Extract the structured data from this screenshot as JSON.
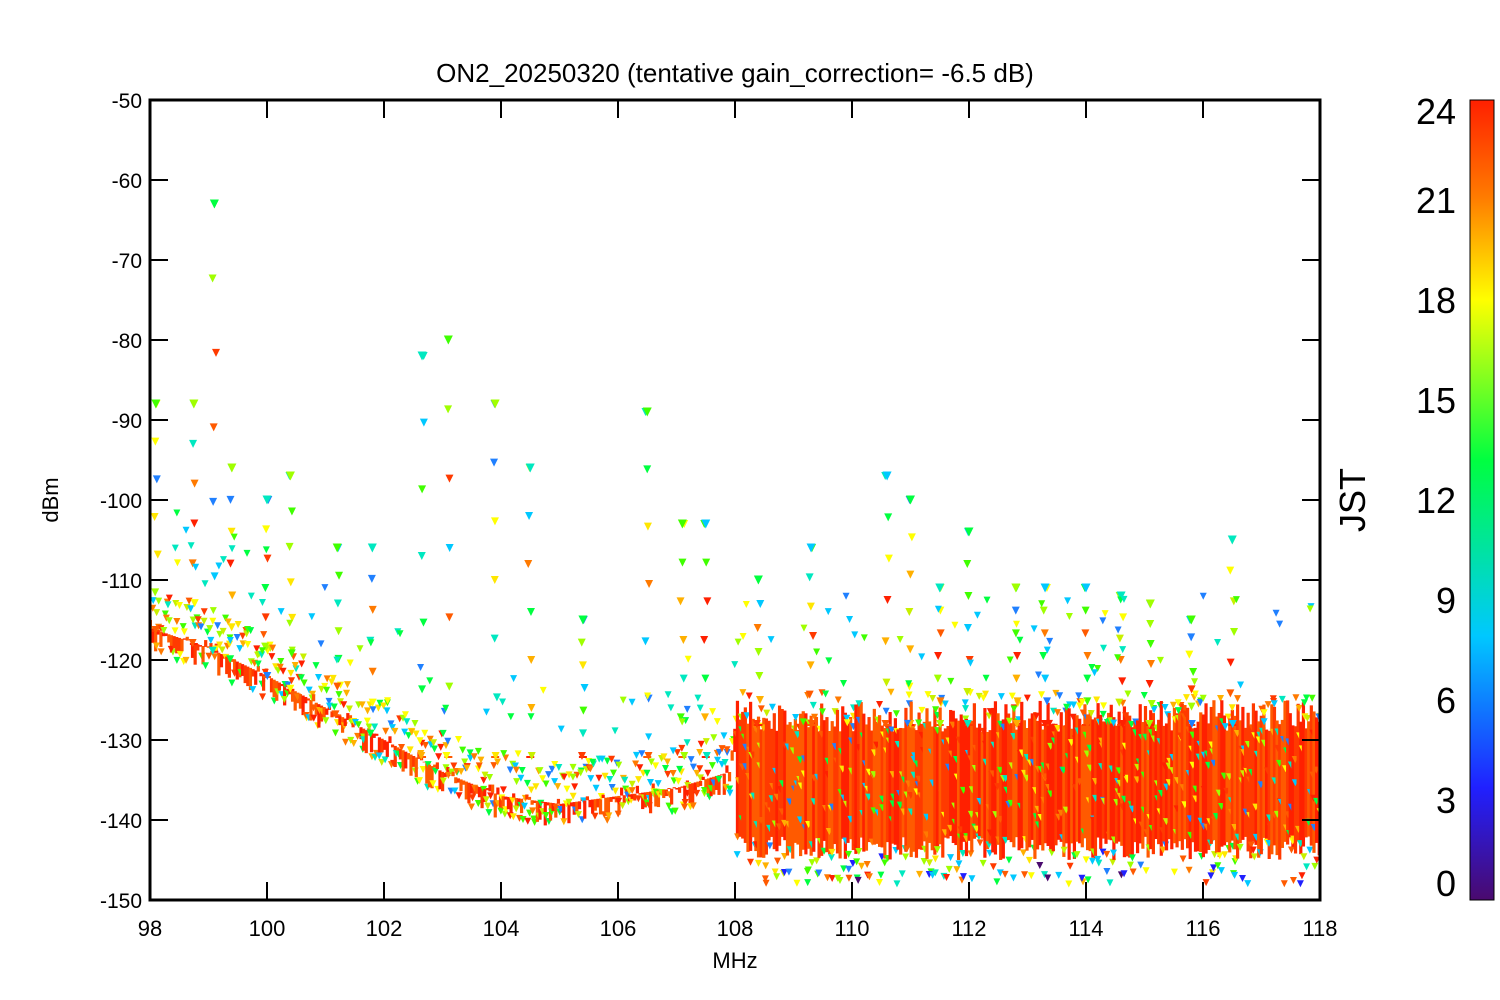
{
  "chart_data": {
    "type": "scatter",
    "title": "ON2_20250320 (tentative gain_correction= -6.5 dB)",
    "xlabel": "MHz",
    "ylabel": "dBm",
    "xlim": [
      98,
      118
    ],
    "ylim": [
      -150,
      -50
    ],
    "xticks": [
      "98",
      "100",
      "102",
      "104",
      "106",
      "108",
      "110",
      "112",
      "114",
      "116",
      "118"
    ],
    "yticks": [
      "-50",
      "-60",
      "-70",
      "-80",
      "-90",
      "-100",
      "-110",
      "-120",
      "-130",
      "-140",
      "-150"
    ],
    "colorbar": {
      "label": "JST",
      "range": [
        0,
        24
      ],
      "ticks": [
        "0",
        "3",
        "6",
        "9",
        "12",
        "15",
        "18",
        "21",
        "24"
      ],
      "colormap": "rainbow",
      "colors": [
        "#4a0a6e",
        "#2020ff",
        "#00c8ff",
        "#00ff40",
        "#ffff00",
        "#ff7a00",
        "#ff2000"
      ]
    },
    "noise_floor": [
      {
        "x": 98.0,
        "y": -116
      },
      {
        "x": 99.0,
        "y": -118.5
      },
      {
        "x": 100.0,
        "y": -122
      },
      {
        "x": 101.0,
        "y": -126
      },
      {
        "x": 102.0,
        "y": -130
      },
      {
        "x": 103.0,
        "y": -134
      },
      {
        "x": 104.0,
        "y": -137
      },
      {
        "x": 105.0,
        "y": -138
      },
      {
        "x": 106.0,
        "y": -137
      },
      {
        "x": 107.0,
        "y": -136
      },
      {
        "x": 107.9,
        "y": -134
      },
      {
        "x": 108.0,
        "y": -128
      },
      {
        "x": 118.0,
        "y": -128
      }
    ],
    "peaks": [
      {
        "x": 98.1,
        "y": -88
      },
      {
        "x": 98.75,
        "y": -88
      },
      {
        "x": 99.1,
        "y": -63
      },
      {
        "x": 99.4,
        "y": -96
      },
      {
        "x": 100.0,
        "y": -100
      },
      {
        "x": 100.4,
        "y": -97
      },
      {
        "x": 101.2,
        "y": -106
      },
      {
        "x": 101.8,
        "y": -106
      },
      {
        "x": 102.65,
        "y": -82
      },
      {
        "x": 103.1,
        "y": -80
      },
      {
        "x": 103.9,
        "y": -88
      },
      {
        "x": 104.5,
        "y": -96
      },
      {
        "x": 105.4,
        "y": -115
      },
      {
        "x": 106.5,
        "y": -89
      },
      {
        "x": 107.1,
        "y": -103
      },
      {
        "x": 107.5,
        "y": -103
      },
      {
        "x": 108.4,
        "y": -110
      },
      {
        "x": 109.3,
        "y": -106
      },
      {
        "x": 110.6,
        "y": -97
      },
      {
        "x": 111.0,
        "y": -100
      },
      {
        "x": 111.5,
        "y": -111
      },
      {
        "x": 112.0,
        "y": -104
      },
      {
        "x": 112.8,
        "y": -111
      },
      {
        "x": 113.3,
        "y": -111
      },
      {
        "x": 114.0,
        "y": -111
      },
      {
        "x": 114.6,
        "y": -112
      },
      {
        "x": 115.1,
        "y": -113
      },
      {
        "x": 115.8,
        "y": -115
      },
      {
        "x": 116.5,
        "y": -105
      }
    ]
  }
}
